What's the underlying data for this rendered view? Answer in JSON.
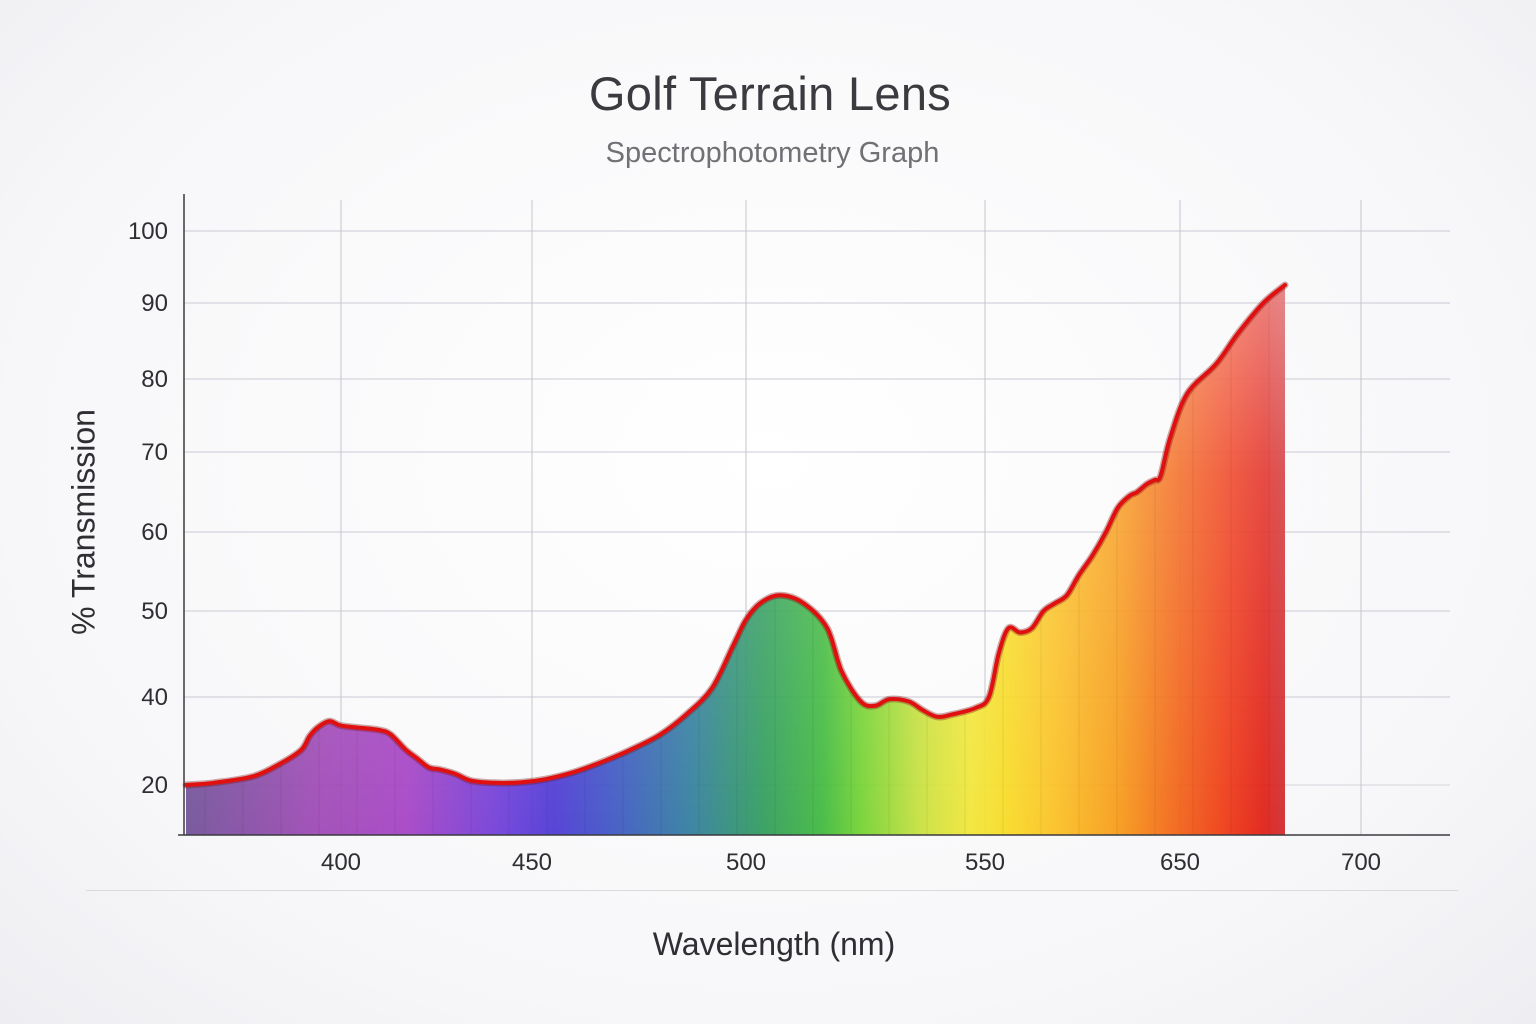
{
  "chart_data": {
    "type": "area",
    "title": "Golf Terrain Lens",
    "subtitle": "Spectrophotometry Graph",
    "xlabel": "Wavelength (nm)",
    "ylabel": "% Transmission",
    "x_ticks": [
      {
        "label": "400",
        "value": 400
      },
      {
        "label": "450",
        "value": 450
      },
      {
        "label": "500",
        "value": 500
      },
      {
        "label": "550",
        "value": 550
      },
      {
        "label": "650",
        "value": 650
      },
      {
        "label": "700",
        "value": 700
      }
    ],
    "y_ticks": [
      {
        "label": "100",
        "value": 100
      },
      {
        "label": "90",
        "value": 90
      },
      {
        "label": "80",
        "value": 80
      },
      {
        "label": "70",
        "value": 70
      },
      {
        "label": "60",
        "value": 60
      },
      {
        "label": "50",
        "value": 50
      },
      {
        "label": "40",
        "value": 40
      },
      {
        "label": "20",
        "value": 20
      }
    ],
    "grid": true,
    "series": [
      {
        "color": "#e01010",
        "points": [
          [
            361,
            20
          ],
          [
            368,
            20.5
          ],
          [
            378,
            22
          ],
          [
            385,
            25
          ],
          [
            390,
            28
          ],
          [
            392,
            31
          ],
          [
            394,
            33
          ],
          [
            397,
            34.5
          ],
          [
            400,
            33.5
          ],
          [
            405,
            33
          ],
          [
            410,
            32.5
          ],
          [
            413,
            31.5
          ],
          [
            417,
            28
          ],
          [
            420,
            26
          ],
          [
            423,
            24
          ],
          [
            426,
            23.5
          ],
          [
            430,
            22.5
          ],
          [
            434,
            21
          ],
          [
            440,
            20.5
          ],
          [
            447,
            20.6
          ],
          [
            453,
            21.3
          ],
          [
            460,
            23
          ],
          [
            467,
            25.5
          ],
          [
            473,
            28
          ],
          [
            480,
            31.5
          ],
          [
            486,
            36
          ],
          [
            492,
            41
          ],
          [
            497,
            46
          ],
          [
            500,
            49
          ],
          [
            503,
            51
          ],
          [
            507,
            52
          ],
          [
            512,
            51
          ],
          [
            517,
            48
          ],
          [
            520,
            43
          ],
          [
            524,
            39
          ],
          [
            527,
            38
          ],
          [
            530,
            39.5
          ],
          [
            534,
            39
          ],
          [
            537,
            37
          ],
          [
            540,
            35.5
          ],
          [
            543,
            36
          ],
          [
            548,
            37.5
          ],
          [
            552,
            40
          ],
          [
            557,
            45
          ],
          [
            562,
            48
          ],
          [
            568,
            47.5
          ],
          [
            574,
            48
          ],
          [
            580,
            50
          ],
          [
            586,
            51
          ],
          [
            592,
            52
          ],
          [
            598,
            54.5
          ],
          [
            605,
            57
          ],
          [
            612,
            60
          ],
          [
            618,
            63
          ],
          [
            624,
            64.5
          ],
          [
            628,
            65
          ],
          [
            633,
            66
          ],
          [
            637,
            66.5
          ],
          [
            640,
            67
          ],
          [
            645,
            72
          ],
          [
            652,
            78
          ],
          [
            660,
            82
          ],
          [
            666,
            86
          ],
          [
            673,
            90
          ],
          [
            679,
            92.5
          ]
        ]
      }
    ]
  }
}
